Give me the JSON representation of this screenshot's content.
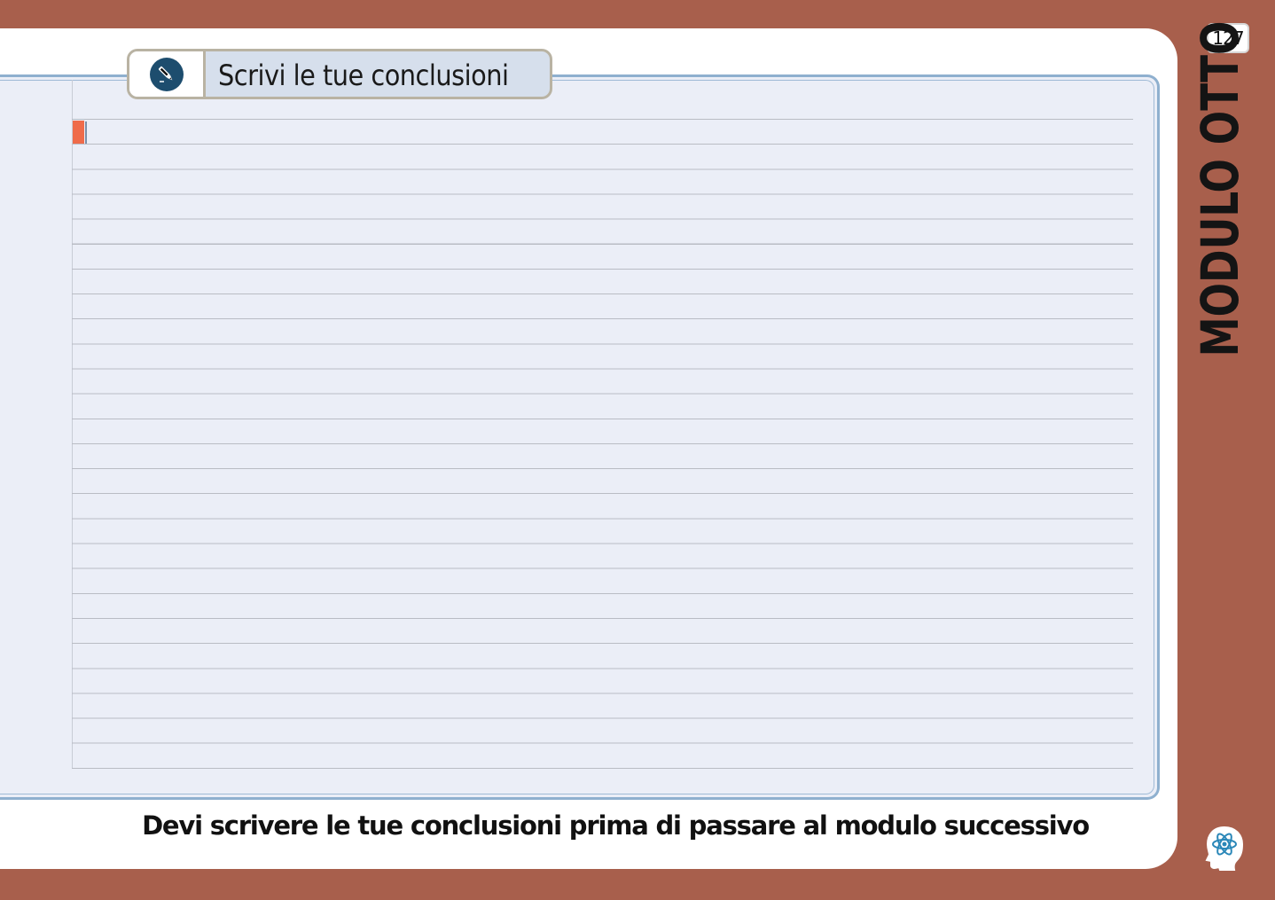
{
  "header": {
    "title": "Scrivi le tue conclusioni",
    "icon": "pen-icon"
  },
  "writing_area": {
    "line_count": 26,
    "cursor_color": "#ef6b4a"
  },
  "footer": {
    "note": "Devi scrivere le tue conclusioni prima di passare al modulo successivo"
  },
  "sidebar": {
    "page_number": "127",
    "module_label": "MODULO OTTO",
    "logo_icon": "atom-head-icon"
  },
  "colors": {
    "page_background": "#a85f4c",
    "panel_background": "#ebeef7",
    "panel_border": "#8fb0cf",
    "icon_blue": "#1d4d6e"
  }
}
